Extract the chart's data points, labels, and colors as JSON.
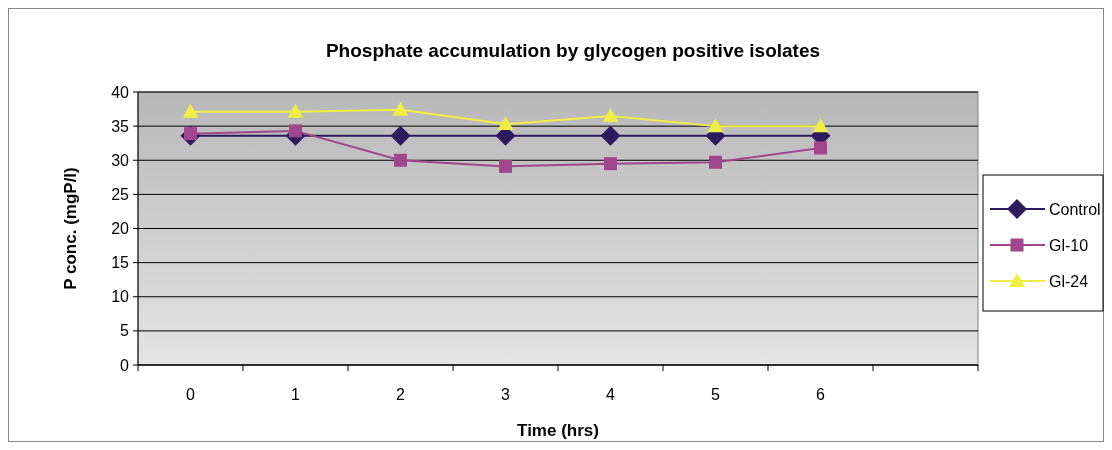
{
  "chart_data": {
    "type": "line",
    "title": "Phosphate accumulation by glycogen positive isolates",
    "xlabel": "Time (hrs)",
    "ylabel": "P conc. (mgP/l)",
    "categories": [
      "0",
      "1",
      "2",
      "3",
      "4",
      "5",
      "6",
      null
    ],
    "series": [
      {
        "name": "Control",
        "color": "#2e1a5e",
        "marker": "diamond",
        "values": [
          33.6,
          33.6,
          33.6,
          33.6,
          33.6,
          33.6,
          33.6,
          null
        ]
      },
      {
        "name": "Gl-10",
        "color": "#a0468e",
        "marker": "square",
        "values": [
          33.9,
          34.3,
          30.0,
          29.1,
          29.5,
          29.7,
          31.8,
          null
        ]
      },
      {
        "name": "Gl-24",
        "color": "#eeee44",
        "marker": "triangle",
        "values": [
          37.1,
          37.1,
          37.4,
          35.3,
          36.5,
          35.0,
          35.0,
          null
        ]
      }
    ],
    "ylim": [
      0,
      40
    ],
    "yticks": [
      0,
      5,
      10,
      15,
      20,
      25,
      30,
      35,
      40
    ],
    "grid": "y",
    "legend": "right"
  }
}
